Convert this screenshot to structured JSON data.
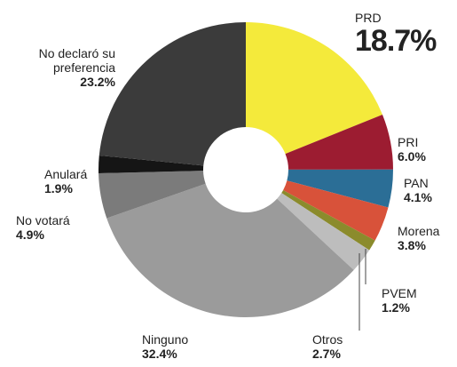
{
  "chart_data": {
    "type": "pie",
    "donut": true,
    "categories": [
      "PRD",
      "PRI",
      "PAN",
      "Morena",
      "PVEM",
      "Otros",
      "Ninguno",
      "No votará",
      "Anulará",
      "No declaró su preferencia"
    ],
    "values": [
      18.7,
      6.0,
      4.1,
      3.8,
      1.2,
      2.7,
      32.4,
      4.9,
      1.9,
      23.2
    ],
    "value_labels": [
      "18.7%",
      "6.0%",
      "4.1%",
      "3.8%",
      "1.2%",
      "2.7%",
      "32.4%",
      "4.9%",
      "1.9%",
      "23.2%"
    ],
    "colors": [
      "#f4ea3b",
      "#9c1c31",
      "#2b6e96",
      "#d8523a",
      "#8b8b2c",
      "#bdbdbd",
      "#9b9b9b",
      "#7b7b7b",
      "#151515",
      "#3b3b3b"
    ]
  }
}
